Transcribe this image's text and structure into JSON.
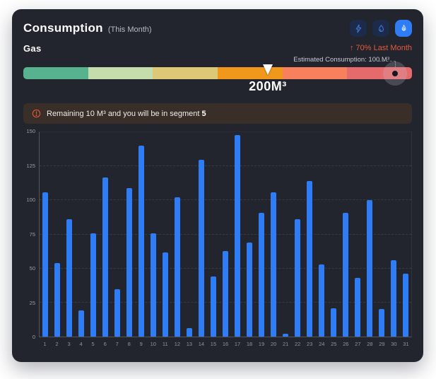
{
  "header": {
    "title": "Consumption",
    "subtitle": "(This Month)",
    "toggles": [
      {
        "id": "electricity",
        "icon": "lightning-icon",
        "active": false
      },
      {
        "id": "water",
        "icon": "water-drop-icon",
        "active": false
      },
      {
        "id": "gas",
        "icon": "flame-icon",
        "active": true
      }
    ]
  },
  "meter": {
    "label": "Gas",
    "trend_arrow": "↑",
    "trend_text": "70% Last Month",
    "trend_color": "#e4593a",
    "current_label": "200M³",
    "current_position_pct": 62.9,
    "estimated_label": "Estimated Consumption: 100 M³",
    "estimated_position_pct": 95.6,
    "segment_colors": [
      "#57b28f",
      "#c5ddab",
      "#dcc877",
      "#f0981b",
      "#f8805c",
      "#e56a6c"
    ]
  },
  "alert": {
    "text": "Remaining 10 M³ and you will be in segment",
    "segment_number": "5"
  },
  "chart_data": {
    "type": "bar",
    "title": "Gas consumption by day of month",
    "categories": [
      1,
      2,
      3,
      4,
      5,
      6,
      7,
      8,
      9,
      10,
      11,
      12,
      13,
      14,
      15,
      16,
      17,
      18,
      19,
      20,
      21,
      22,
      23,
      24,
      25,
      26,
      27,
      28,
      29,
      30,
      31
    ],
    "values": [
      106,
      54,
      86,
      19,
      76,
      117,
      35,
      109,
      140,
      76,
      62,
      102,
      6,
      130,
      44,
      63,
      148,
      69,
      91,
      106,
      2,
      86,
      114,
      53,
      21,
      91,
      43,
      100,
      20,
      56,
      46
    ],
    "xlabel": "",
    "ylabel": "",
    "ylim": [
      0,
      150
    ],
    "yticks": [
      0,
      25,
      50,
      75,
      100,
      125,
      150
    ],
    "bar_color": "#2e7cf6",
    "grid": "horizontal-dashed",
    "legend": false
  },
  "colors": {
    "page_bg": "#ffffff",
    "card_bg": "#23252e",
    "accent_blue": "#2e7cf6",
    "toggle_inactive_bg": "#1c2b4a",
    "toggle_inactive_icon": "#4473d8",
    "alert_bg": "#3a2e28",
    "warning_orange": "#e4593a",
    "muted_text": "#b7bac3",
    "axis_text": "#8f929c"
  }
}
